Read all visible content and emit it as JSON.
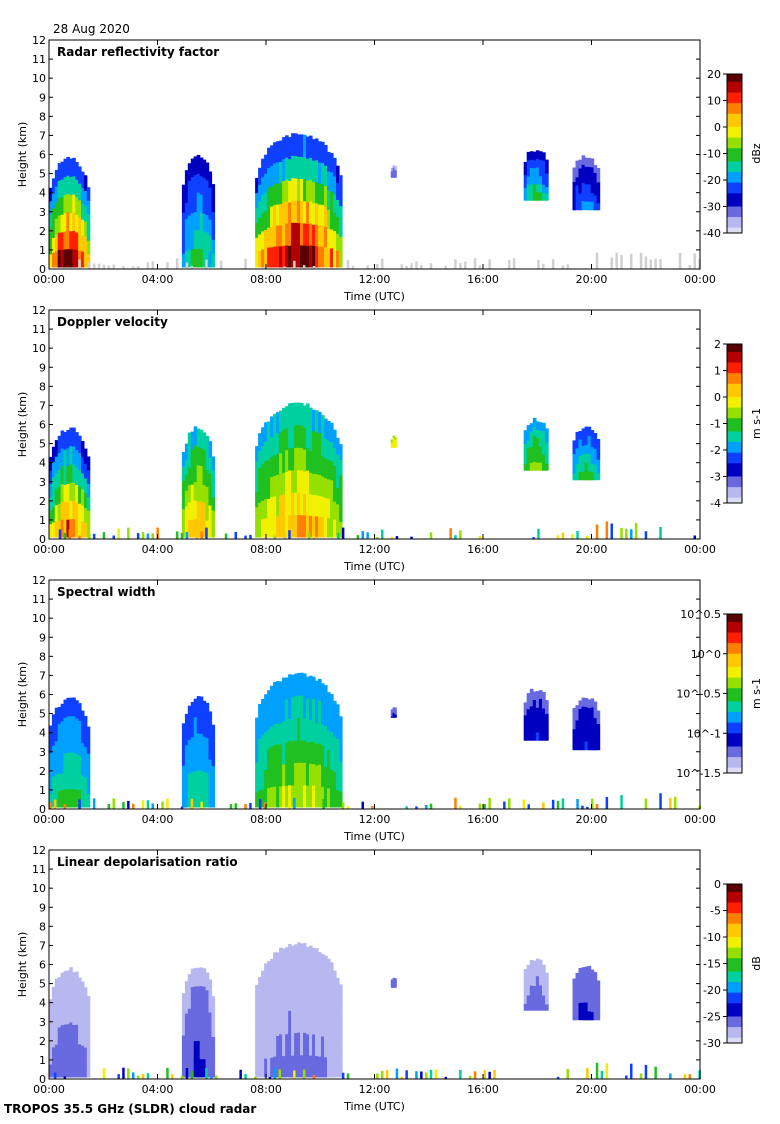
{
  "page": {
    "date": "28 Aug 2020",
    "footer": "TROPOS 35.5 GHz (SLDR) cloud radar"
  },
  "colors": {
    "jet": [
      "#5a0000",
      "#b40000",
      "#ff2000",
      "#ff8000",
      "#ffc800",
      "#f0f000",
      "#96e000",
      "#20c020",
      "#00d0a0",
      "#00a0ff",
      "#1040ff",
      "#0000c0",
      "#6a6ae0",
      "#b8b8f0",
      "#dcdcf4"
    ],
    "lowclutter": "#d0d0d0"
  },
  "chart_data": [
    {
      "type": "heatmap",
      "title": "Radar reflectivity factor",
      "xlabel": "Time (UTC)",
      "ylabel": "Height (km)",
      "xticks": [
        "00:00",
        "04:00",
        "08:00",
        "12:00",
        "16:00",
        "20:00",
        "00:00"
      ],
      "xlim": [
        0,
        24
      ],
      "ylim": [
        0,
        12
      ],
      "yticks": [
        "0",
        "1",
        "2",
        "3",
        "4",
        "5",
        "6",
        "7",
        "8",
        "9",
        "10",
        "11",
        "12"
      ],
      "colorbar": {
        "unit": "dBz",
        "min": -40,
        "max": 20,
        "ticks": [
          "20",
          "10",
          "0",
          "-10",
          "-20",
          "-30",
          "-40"
        ]
      },
      "clouds": [
        {
          "t0": 0.0,
          "t1": 1.5,
          "hbase": 0.1,
          "htop": 5.9,
          "vmax": 20,
          "vmin": -30
        },
        {
          "t0": 4.9,
          "t1": 6.1,
          "hbase": 0.1,
          "htop": 6.0,
          "vmax": -10,
          "vmin": -30
        },
        {
          "t0": 7.6,
          "t1": 10.8,
          "hbase": 0.1,
          "htop": 7.2,
          "vmax": 20,
          "vmin": -30
        },
        {
          "t0": 12.6,
          "t1": 12.8,
          "hbase": 4.8,
          "htop": 5.5,
          "vmax": -30,
          "vmin": -35
        },
        {
          "t0": 17.5,
          "t1": 18.4,
          "hbase": 3.6,
          "htop": 6.4,
          "vmax": -10,
          "vmin": -30
        },
        {
          "t0": 19.3,
          "t1": 20.3,
          "hbase": 3.1,
          "htop": 6.0,
          "vmax": -20,
          "vmin": -32
        }
      ]
    },
    {
      "type": "heatmap",
      "title": "Doppler velocity",
      "xlabel": "Time (UTC)",
      "ylabel": "Height (km)",
      "xticks": [
        "00:00",
        "04:00",
        "08:00",
        "12:00",
        "16:00",
        "20:00",
        "00:00"
      ],
      "xlim": [
        0,
        24
      ],
      "ylim": [
        0,
        12
      ],
      "yticks": [
        "0",
        "1",
        "2",
        "3",
        "4",
        "5",
        "6",
        "7",
        "8",
        "9",
        "10",
        "11",
        "12"
      ],
      "colorbar": {
        "unit": "m s-1",
        "min": -4,
        "max": 2,
        "ticks": [
          "2",
          "1",
          "0",
          "-1",
          "-2",
          "-3",
          "-4"
        ]
      },
      "clouds": [
        {
          "t0": 0.0,
          "t1": 1.5,
          "hbase": 0.1,
          "htop": 5.9,
          "vmax": 1,
          "vmin": -3
        },
        {
          "t0": 4.9,
          "t1": 6.1,
          "hbase": 0.1,
          "htop": 6.0,
          "vmax": 0.5,
          "vmin": -2
        },
        {
          "t0": 7.6,
          "t1": 10.8,
          "hbase": 0.1,
          "htop": 7.2,
          "vmax": 0.5,
          "vmin": -2
        },
        {
          "t0": 12.6,
          "t1": 12.8,
          "hbase": 4.8,
          "htop": 5.5,
          "vmax": 0,
          "vmin": -0.5
        },
        {
          "t0": 17.5,
          "t1": 18.4,
          "hbase": 3.6,
          "htop": 6.4,
          "vmax": -0.5,
          "vmin": -2
        },
        {
          "t0": 19.3,
          "t1": 20.3,
          "hbase": 3.1,
          "htop": 6.0,
          "vmax": -1,
          "vmin": -2.5
        }
      ]
    },
    {
      "type": "heatmap",
      "title": "Spectral width",
      "xlabel": "Time (UTC)",
      "ylabel": "Height (km)",
      "xticks": [
        "00:00",
        "04:00",
        "08:00",
        "12:00",
        "16:00",
        "20:00",
        "00:00"
      ],
      "xlim": [
        0,
        24
      ],
      "ylim": [
        0,
        12
      ],
      "yticks": [
        "0",
        "1",
        "2",
        "3",
        "4",
        "5",
        "6",
        "7",
        "8",
        "9",
        "10",
        "11",
        "12"
      ],
      "colorbar": {
        "unit": "m s-1",
        "min": -1.5,
        "max": 0.5,
        "ticks": [
          "10^0.5",
          "10^0",
          "10^-0.5",
          "10^-1",
          "10^-1.5"
        ]
      },
      "clouds": [
        {
          "t0": 0.0,
          "t1": 1.5,
          "hbase": 0.1,
          "htop": 5.9,
          "vmax": -0.5,
          "vmin": -1
        },
        {
          "t0": 4.9,
          "t1": 6.1,
          "hbase": 0.1,
          "htop": 6.0,
          "vmax": -0.6,
          "vmin": -1
        },
        {
          "t0": 7.6,
          "t1": 10.8,
          "hbase": 0.1,
          "htop": 7.2,
          "vmax": -0.3,
          "vmin": -0.9
        },
        {
          "t0": 12.6,
          "t1": 12.8,
          "hbase": 4.8,
          "htop": 5.5,
          "vmax": -1.1,
          "vmin": -1.2
        },
        {
          "t0": 17.5,
          "t1": 18.4,
          "hbase": 3.6,
          "htop": 6.4,
          "vmax": -1,
          "vmin": -1.2
        },
        {
          "t0": 19.3,
          "t1": 20.3,
          "hbase": 3.1,
          "htop": 6.0,
          "vmax": -1,
          "vmin": -1.2
        }
      ]
    },
    {
      "type": "heatmap",
      "title": "Linear depolarisation ratio",
      "xlabel": "Time (UTC)",
      "ylabel": "Height (km)",
      "xticks": [
        "00:00",
        "04:00",
        "08:00",
        "12:00",
        "16:00",
        "20:00",
        "00:00"
      ],
      "xlim": [
        0,
        24
      ],
      "ylim": [
        0,
        12
      ],
      "yticks": [
        "0",
        "1",
        "2",
        "3",
        "4",
        "5",
        "6",
        "7",
        "8",
        "9",
        "10",
        "11",
        "12"
      ],
      "colorbar": {
        "unit": "dB",
        "min": -30,
        "max": 0,
        "ticks": [
          "0",
          "-5",
          "-10",
          "-15",
          "-20",
          "-25",
          "-30"
        ]
      },
      "clouds": [
        {
          "t0": 0.0,
          "t1": 1.5,
          "hbase": 0.1,
          "htop": 5.9,
          "vmax": -25,
          "vmin": -29
        },
        {
          "t0": 4.9,
          "t1": 6.1,
          "hbase": 0.1,
          "htop": 6.0,
          "vmax": -24,
          "vmin": -28
        },
        {
          "t0": 7.6,
          "t1": 10.8,
          "hbase": 0.1,
          "htop": 7.2,
          "vmax": -26,
          "vmin": -29
        },
        {
          "t0": 12.6,
          "t1": 12.8,
          "hbase": 4.8,
          "htop": 5.5,
          "vmax": -25,
          "vmin": -26
        },
        {
          "t0": 17.5,
          "t1": 18.4,
          "hbase": 3.6,
          "htop": 6.4,
          "vmax": -25,
          "vmin": -29
        },
        {
          "t0": 19.3,
          "t1": 20.3,
          "hbase": 3.1,
          "htop": 6.0,
          "vmax": -24,
          "vmin": -27
        }
      ]
    }
  ]
}
